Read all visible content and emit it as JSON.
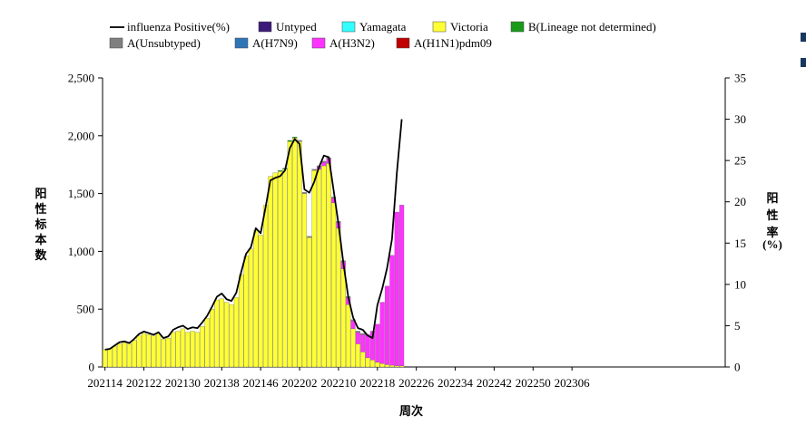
{
  "chart_data": {
    "type": "bar",
    "stacked": true,
    "xlabel": "周次",
    "ylabel": "阳性标本数",
    "y2label": "阳性率(%)",
    "ylim": [
      0,
      2500
    ],
    "y2lim": [
      0,
      35
    ],
    "yticks": [
      "0",
      "500",
      "1,000",
      "1,500",
      "2,000",
      "2,500"
    ],
    "y2ticks": [
      "0",
      "5",
      "10",
      "15",
      "20",
      "25",
      "30",
      "35"
    ],
    "xtick_labels": [
      "202114",
      "202122",
      "202130",
      "202138",
      "202146",
      "202202",
      "202210",
      "202218",
      "202226",
      "202234",
      "202242",
      "202250",
      "202306"
    ],
    "n_slots": 128,
    "legend": [
      {
        "name": "influenza Positive(%)",
        "kind": "line",
        "color": "#000000"
      },
      {
        "name": "Untyped",
        "kind": "box",
        "color": "#3b1a7a"
      },
      {
        "name": "Yamagata",
        "kind": "box",
        "color": "#33ffff"
      },
      {
        "name": "Victoria",
        "kind": "box",
        "color": "#ffff33"
      },
      {
        "name": "B(Lineage not determined)",
        "kind": "box",
        "color": "#1a9a1a"
      },
      {
        "name": "A(Unsubtyped)",
        "kind": "box",
        "color": "#808080"
      },
      {
        "name": "A(H7N9)",
        "kind": "box",
        "color": "#2e75b6"
      },
      {
        "name": "A(H3N2)",
        "kind": "box",
        "color": "#ff33ff"
      },
      {
        "name": "A(H1N1)pdm09",
        "kind": "box",
        "color": "#c00000"
      }
    ],
    "series": [
      {
        "name": "Victoria",
        "color": "#ffff33",
        "values": [
          150,
          160,
          180,
          200,
          210,
          200,
          230,
          270,
          290,
          280,
          270,
          290,
          240,
          250,
          300,
          310,
          330,
          300,
          310,
          300,
          350,
          420,
          500,
          580,
          590,
          560,
          540,
          600,
          800,
          960,
          1020,
          1180,
          1140,
          1400,
          1650,
          1680,
          1690,
          1710,
          1950,
          1980,
          1950,
          1500,
          1120,
          1700,
          1710,
          1740,
          1760,
          1420,
          1200,
          850,
          540,
          330,
          200,
          130,
          80,
          60,
          40,
          30,
          20,
          15,
          10,
          10
        ]
      },
      {
        "name": "A(H3N2)",
        "color": "#ff33ff",
        "values": [
          0,
          0,
          0,
          0,
          0,
          0,
          0,
          0,
          0,
          0,
          0,
          0,
          0,
          0,
          0,
          0,
          0,
          0,
          0,
          0,
          0,
          0,
          0,
          0,
          0,
          0,
          0,
          0,
          0,
          0,
          0,
          0,
          0,
          0,
          0,
          0,
          0,
          0,
          0,
          0,
          0,
          0,
          0,
          0,
          20,
          30,
          40,
          40,
          50,
          60,
          60,
          70,
          100,
          150,
          200,
          250,
          330,
          530,
          680,
          950,
          1330,
          1390
        ]
      },
      {
        "name": "A(Unsubtyped)",
        "color": "#808080",
        "values": [
          0,
          0,
          0,
          0,
          0,
          0,
          0,
          0,
          0,
          0,
          0,
          0,
          0,
          0,
          0,
          0,
          0,
          0,
          0,
          0,
          0,
          0,
          0,
          0,
          0,
          0,
          0,
          0,
          0,
          0,
          0,
          0,
          0,
          0,
          0,
          0,
          0,
          0,
          0,
          0,
          10,
          10,
          10,
          10,
          10,
          10,
          10,
          10,
          10,
          10,
          10,
          10,
          10,
          10,
          0,
          0,
          0,
          0,
          0,
          0,
          0,
          0
        ]
      },
      {
        "name": "B(Lineage not determined)",
        "color": "#1a9a1a",
        "values": [
          0,
          0,
          0,
          0,
          0,
          0,
          0,
          0,
          0,
          0,
          0,
          0,
          0,
          0,
          0,
          0,
          0,
          0,
          0,
          0,
          0,
          0,
          0,
          0,
          0,
          0,
          0,
          0,
          0,
          0,
          0,
          0,
          0,
          0,
          0,
          0,
          10,
          10,
          10,
          10,
          0,
          0,
          0,
          0,
          0,
          0,
          0,
          0,
          0,
          0,
          0,
          0,
          0,
          0,
          0,
          0,
          0,
          0,
          0,
          0,
          0,
          0
        ]
      }
    ],
    "line_series": {
      "name": "influenza Positive(%)",
      "axis": "y2",
      "color": "#000000",
      "values": [
        2.1,
        2.2,
        2.6,
        3.0,
        3.1,
        2.9,
        3.4,
        4.0,
        4.3,
        4.1,
        3.9,
        4.2,
        3.5,
        3.7,
        4.5,
        4.8,
        5.0,
        4.6,
        4.8,
        4.7,
        5.4,
        6.2,
        7.3,
        8.5,
        8.9,
        8.2,
        8.0,
        9.0,
        11.5,
        13.7,
        14.5,
        16.8,
        16.2,
        19.3,
        22.6,
        22.9,
        23.1,
        23.8,
        26.5,
        27.6,
        27.0,
        21.5,
        21.1,
        22.4,
        24.2,
        25.6,
        25.4,
        21.4,
        17.3,
        12.6,
        8.5,
        6.0,
        4.7,
        4.5,
        3.8,
        3.5,
        7.5,
        9.5,
        12.0,
        15.5,
        23.5,
        30.0
      ]
    }
  }
}
